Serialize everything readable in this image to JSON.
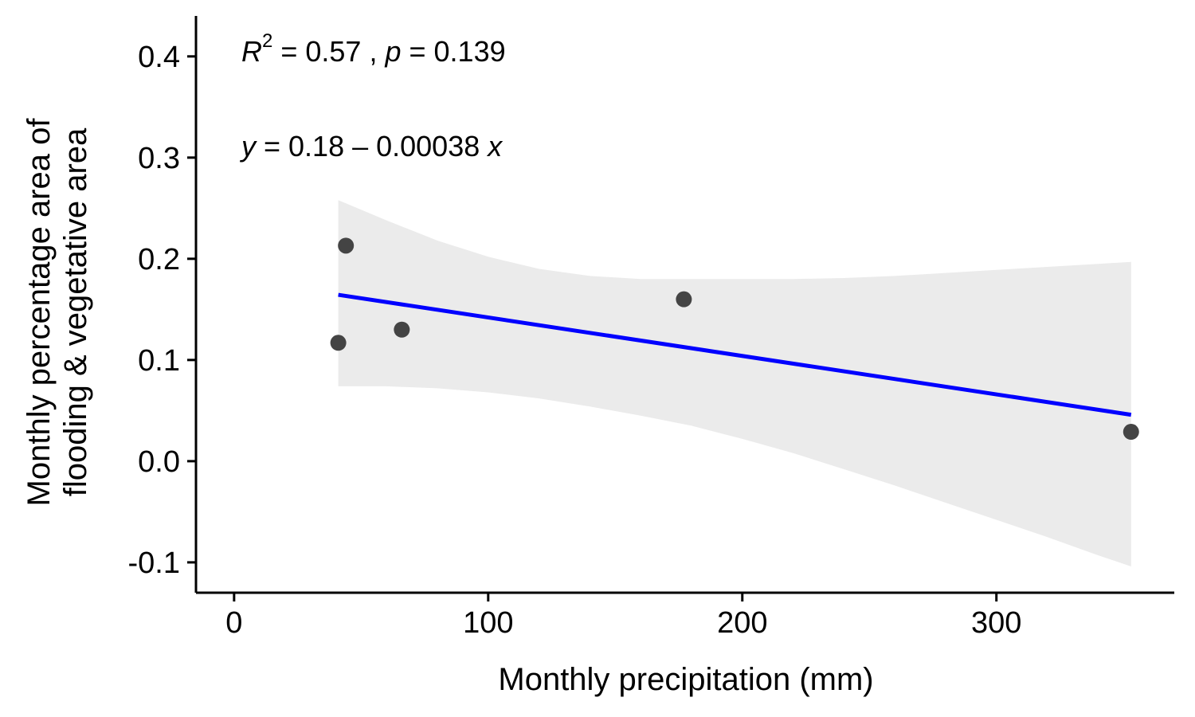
{
  "chart_data": {
    "type": "scatter",
    "xlabel": "Monthly precipitation (mm)",
    "ylabel_lines": [
      "Monthly percentage area of",
      "flooding & vegetative area"
    ],
    "xlim": [
      -15,
      370
    ],
    "ylim": [
      -0.13,
      0.44
    ],
    "x_ticks": [
      0,
      100,
      200,
      300
    ],
    "x_tick_labels": [
      "0",
      "100",
      "200",
      "300"
    ],
    "y_ticks": [
      -0.1,
      0.0,
      0.1,
      0.2,
      0.3,
      0.4
    ],
    "y_tick_labels": [
      "-0.1",
      "0.0",
      "0.1",
      "0.2",
      "0.3",
      "0.4"
    ],
    "grid": false,
    "points": [
      {
        "x": 41,
        "y": 0.117
      },
      {
        "x": 44,
        "y": 0.213
      },
      {
        "x": 66,
        "y": 0.13
      },
      {
        "x": 177,
        "y": 0.16
      },
      {
        "x": 353,
        "y": 0.029
      }
    ],
    "regression": {
      "x_range": [
        41,
        353
      ],
      "intercept": 0.18,
      "slope": -0.00038,
      "ci_upper": [
        {
          "x": 41,
          "y": 0.258
        },
        {
          "x": 60,
          "y": 0.238
        },
        {
          "x": 80,
          "y": 0.218
        },
        {
          "x": 100,
          "y": 0.202
        },
        {
          "x": 120,
          "y": 0.19
        },
        {
          "x": 140,
          "y": 0.183
        },
        {
          "x": 160,
          "y": 0.18
        },
        {
          "x": 180,
          "y": 0.18
        },
        {
          "x": 200,
          "y": 0.18
        },
        {
          "x": 220,
          "y": 0.18
        },
        {
          "x": 240,
          "y": 0.181
        },
        {
          "x": 260,
          "y": 0.183
        },
        {
          "x": 280,
          "y": 0.186
        },
        {
          "x": 300,
          "y": 0.189
        },
        {
          "x": 320,
          "y": 0.192
        },
        {
          "x": 340,
          "y": 0.195
        },
        {
          "x": 353,
          "y": 0.197
        }
      ],
      "ci_lower": [
        {
          "x": 41,
          "y": 0.074
        },
        {
          "x": 60,
          "y": 0.074
        },
        {
          "x": 80,
          "y": 0.072
        },
        {
          "x": 100,
          "y": 0.068
        },
        {
          "x": 120,
          "y": 0.062
        },
        {
          "x": 140,
          "y": 0.054
        },
        {
          "x": 160,
          "y": 0.045
        },
        {
          "x": 180,
          "y": 0.035
        },
        {
          "x": 200,
          "y": 0.022
        },
        {
          "x": 220,
          "y": 0.008
        },
        {
          "x": 240,
          "y": -0.008
        },
        {
          "x": 260,
          "y": -0.024
        },
        {
          "x": 280,
          "y": -0.041
        },
        {
          "x": 300,
          "y": -0.058
        },
        {
          "x": 320,
          "y": -0.075
        },
        {
          "x": 340,
          "y": -0.093
        },
        {
          "x": 353,
          "y": -0.104
        }
      ]
    },
    "annotations": {
      "r2_symbol": "R",
      "r2_sup": "2",
      "r2_rest": " = 0.57 , ",
      "p_symbol": "p",
      "p_rest": " = 0.139",
      "eq_y": "y",
      "eq_mid": " = 0.18 – 0.00038 ",
      "eq_x": "x"
    },
    "colors": {
      "line": "#0000ff",
      "ribbon": "#ebebeb",
      "point": "#444444",
      "axis": "#000000"
    }
  }
}
